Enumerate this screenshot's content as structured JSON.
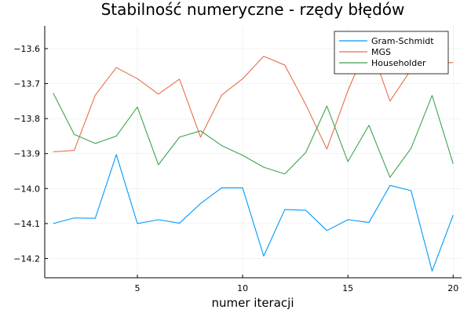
{
  "chart_data": {
    "type": "line",
    "title": "Stabilność numeryczne - rzędy błędów",
    "xlabel": "numer iteracji",
    "ylabel": "",
    "x": [
      1,
      2,
      3,
      4,
      5,
      6,
      7,
      8,
      9,
      10,
      11,
      12,
      13,
      14,
      15,
      16,
      17,
      18,
      19,
      20
    ],
    "xlim": [
      0.6,
      20.4
    ],
    "ylim": [
      -14.255,
      -13.535
    ],
    "xticks": [
      5,
      10,
      15,
      20
    ],
    "xtick_labels": [
      "5",
      "10",
      "15",
      "20"
    ],
    "yticks": [
      -13.6,
      -13.7,
      -13.8,
      -13.9,
      -14.0,
      -14.1,
      -14.2
    ],
    "ytick_labels": [
      "−13.6",
      "−13.7",
      "−13.8",
      "−13.9",
      "−14.0",
      "−14.1",
      "−14.2"
    ],
    "grid": true,
    "legend_position": "top-right",
    "series": [
      {
        "name": "Gram-Schmidt",
        "color": "#009AFA",
        "values": [
          -14.1,
          -14.084,
          -14.085,
          -13.903,
          -14.1,
          -14.089,
          -14.099,
          -14.043,
          -13.998,
          -13.998,
          -14.193,
          -14.06,
          -14.062,
          -14.12,
          -14.089,
          -14.097,
          -13.991,
          -14.006,
          -14.236,
          -14.076
        ]
      },
      {
        "name": "MGS",
        "color": "#E36F47",
        "values": [
          -13.895,
          -13.891,
          -13.733,
          -13.654,
          -13.686,
          -13.73,
          -13.687,
          -13.853,
          -13.733,
          -13.686,
          -13.622,
          -13.647,
          -13.76,
          -13.887,
          -13.72,
          -13.58,
          -13.75,
          -13.66,
          -13.64,
          -13.64
        ]
      },
      {
        "name": "Householder",
        "color": "#3EA44E",
        "values": [
          -13.727,
          -13.845,
          -13.871,
          -13.85,
          -13.767,
          -13.932,
          -13.853,
          -13.835,
          -13.877,
          -13.905,
          -13.939,
          -13.958,
          -13.897,
          -13.764,
          -13.923,
          -13.819,
          -13.968,
          -13.885,
          -13.734,
          -13.929
        ]
      }
    ]
  }
}
